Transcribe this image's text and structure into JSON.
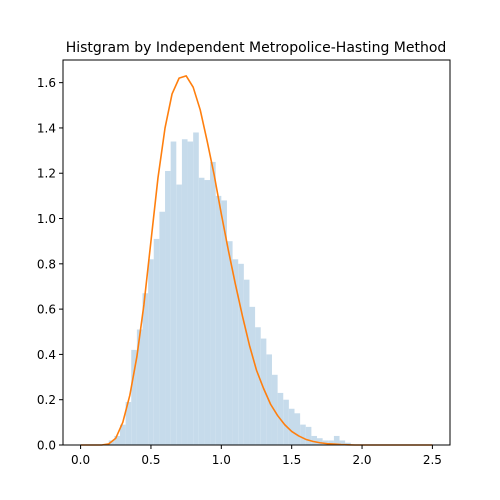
{
  "chart_data": {
    "type": "bar",
    "title": "Histgram by Independent Metropolice-Hasting Method",
    "xlabel": "",
    "ylabel": "",
    "xlim": [
      -0.125,
      2.625
    ],
    "ylim": [
      0,
      1.7
    ],
    "xticks": [
      0.0,
      0.5,
      1.0,
      1.5,
      2.0,
      2.5
    ],
    "xtick_labels": [
      "0.0",
      "0.5",
      "1.0",
      "1.5",
      "2.0",
      "2.5"
    ],
    "yticks": [
      0.0,
      0.2,
      0.4,
      0.6,
      0.8,
      1.0,
      1.2,
      1.4,
      1.6
    ],
    "ytick_labels": [
      "0.0",
      "0.2",
      "0.4",
      "0.6",
      "0.8",
      "1.0",
      "1.2",
      "1.4",
      "1.6"
    ],
    "grid": false,
    "histogram": {
      "name": "",
      "color": "#c6dbeb",
      "bin_edges": [
        0.2,
        0.24,
        0.28,
        0.32,
        0.36,
        0.4,
        0.44,
        0.48,
        0.52,
        0.56,
        0.6,
        0.64,
        0.68,
        0.72,
        0.76,
        0.8,
        0.84,
        0.88,
        0.92,
        0.96,
        1.0,
        1.04,
        1.08,
        1.12,
        1.16,
        1.2,
        1.24,
        1.28,
        1.32,
        1.36,
        1.4,
        1.44,
        1.48,
        1.52,
        1.56,
        1.6,
        1.64,
        1.68,
        1.72,
        1.76,
        1.8,
        1.84,
        1.88,
        1.92
      ],
      "density": [
        0.02,
        0.04,
        0.09,
        0.19,
        0.42,
        0.51,
        0.67,
        0.82,
        0.91,
        1.03,
        1.21,
        1.34,
        1.15,
        1.35,
        1.34,
        1.38,
        1.18,
        1.17,
        1.25,
        1.1,
        1.08,
        0.9,
        0.82,
        0.8,
        0.73,
        0.61,
        0.52,
        0.47,
        0.4,
        0.31,
        0.23,
        0.2,
        0.16,
        0.14,
        0.09,
        0.08,
        0.04,
        0.03,
        0.02,
        0.02,
        0.04,
        0.02,
        0.01
      ]
    },
    "curve": {
      "name": "",
      "color": "#ff7f0e",
      "x": [
        0.0,
        0.05,
        0.1,
        0.15,
        0.2,
        0.25,
        0.3,
        0.35,
        0.4,
        0.45,
        0.5,
        0.55,
        0.6,
        0.65,
        0.7,
        0.75,
        0.8,
        0.85,
        0.9,
        0.95,
        1.0,
        1.05,
        1.1,
        1.15,
        1.2,
        1.25,
        1.3,
        1.35,
        1.4,
        1.45,
        1.5,
        1.55,
        1.6,
        1.65,
        1.7,
        1.75,
        1.8,
        1.85,
        1.9,
        1.95,
        2.0,
        2.1,
        2.2,
        2.3,
        2.4,
        2.5
      ],
      "y": [
        0.0,
        0.0,
        0.0,
        0.0,
        0.005,
        0.03,
        0.1,
        0.22,
        0.39,
        0.62,
        0.9,
        1.18,
        1.4,
        1.55,
        1.62,
        1.63,
        1.58,
        1.48,
        1.34,
        1.19,
        1.02,
        0.86,
        0.71,
        0.57,
        0.44,
        0.33,
        0.25,
        0.18,
        0.13,
        0.09,
        0.06,
        0.04,
        0.025,
        0.016,
        0.01,
        0.006,
        0.004,
        0.002,
        0.001,
        0.0,
        0.0,
        0.0,
        0.0,
        0.0,
        0.0,
        0.0
      ]
    }
  }
}
